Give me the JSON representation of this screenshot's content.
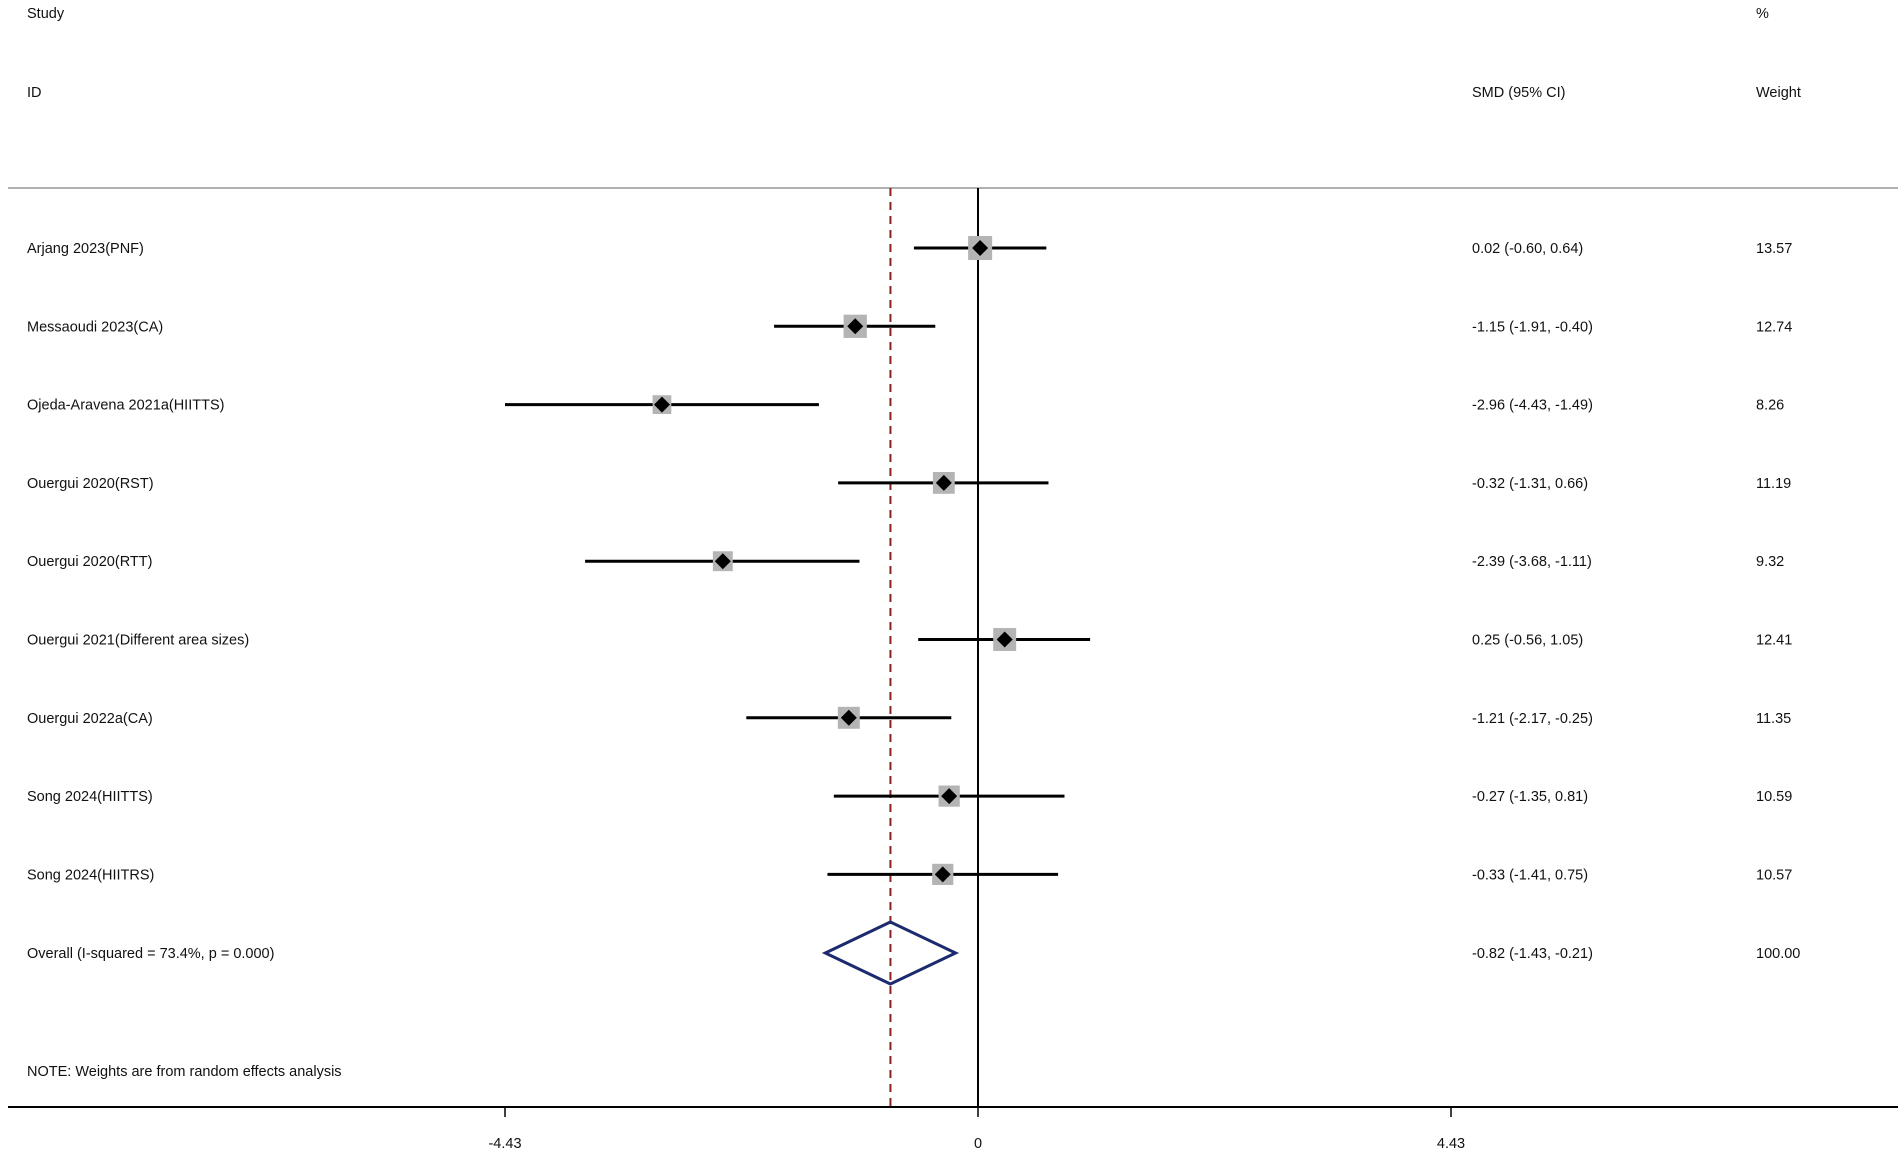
{
  "chart_data": {
    "type": "forest",
    "header": {
      "study_line1": "Study",
      "study_line2": "ID",
      "effect_label": "SMD (95% CI)",
      "weight_line1": "%",
      "weight_line2": "Weight"
    },
    "studies": [
      {
        "id": "Arjang 2023(PNF)",
        "smd": 0.02,
        "lo": -0.6,
        "hi": 0.64,
        "ci_text": "0.02 (-0.60, 0.64)",
        "weight": 13.57,
        "weight_text": "13.57"
      },
      {
        "id": "Messaoudi 2023(CA)",
        "smd": -1.15,
        "lo": -1.91,
        "hi": -0.4,
        "ci_text": "-1.15 (-1.91, -0.40)",
        "weight": 12.74,
        "weight_text": "12.74"
      },
      {
        "id": "Ojeda-Aravena 2021a(HIITTS)",
        "smd": -2.96,
        "lo": -4.43,
        "hi": -1.49,
        "ci_text": "-2.96 (-4.43, -1.49)",
        "weight": 8.26,
        "weight_text": "8.26"
      },
      {
        "id": "Ouergui 2020(RST)",
        "smd": -0.32,
        "lo": -1.31,
        "hi": 0.66,
        "ci_text": "-0.32 (-1.31, 0.66)",
        "weight": 11.19,
        "weight_text": "11.19"
      },
      {
        "id": "Ouergui 2020(RTT)",
        "smd": -2.39,
        "lo": -3.68,
        "hi": -1.11,
        "ci_text": "-2.39 (-3.68, -1.11)",
        "weight": 9.32,
        "weight_text": "9.32"
      },
      {
        "id": "Ouergui 2021(Different area sizes)",
        "smd": 0.25,
        "lo": -0.56,
        "hi": 1.05,
        "ci_text": "0.25 (-0.56, 1.05)",
        "weight": 12.41,
        "weight_text": "12.41"
      },
      {
        "id": "Ouergui 2022a(CA)",
        "smd": -1.21,
        "lo": -2.17,
        "hi": -0.25,
        "ci_text": "-1.21 (-2.17, -0.25)",
        "weight": 11.35,
        "weight_text": "11.35"
      },
      {
        "id": "Song 2024(HIITTS)",
        "smd": -0.27,
        "lo": -1.35,
        "hi": 0.81,
        "ci_text": "-0.27 (-1.35, 0.81)",
        "weight": 10.59,
        "weight_text": "10.59"
      },
      {
        "id": "Song 2024(HIITRS)",
        "smd": -0.33,
        "lo": -1.41,
        "hi": 0.75,
        "ci_text": "-0.33 (-1.41, 0.75)",
        "weight": 10.57,
        "weight_text": "10.57"
      }
    ],
    "overall": {
      "id": "Overall  (I-squared = 73.4%, p = 0.000)",
      "smd": -0.82,
      "lo": -1.43,
      "hi": -0.21,
      "ci_text": "-0.82 (-1.43, -0.21)",
      "weight_text": "100.00"
    },
    "note": "NOTE: Weights are from random effects analysis",
    "x_ticks": [
      {
        "value": -4.43,
        "label": "-4.43"
      },
      {
        "value": 0,
        "label": "0"
      },
      {
        "value": 4.43,
        "label": "4.43"
      }
    ],
    "xlim": [
      -4.43,
      4.43
    ],
    "colors": {
      "text": "#111111",
      "ci_line": "#000000",
      "weight_box": "#b4b4b4",
      "point": "#000000",
      "overall_diamond": "#1c2a6e",
      "overall_line": "#8b2020",
      "null_line": "#000000",
      "frame_line": "#b0b0b0",
      "axis": "#000000"
    }
  }
}
